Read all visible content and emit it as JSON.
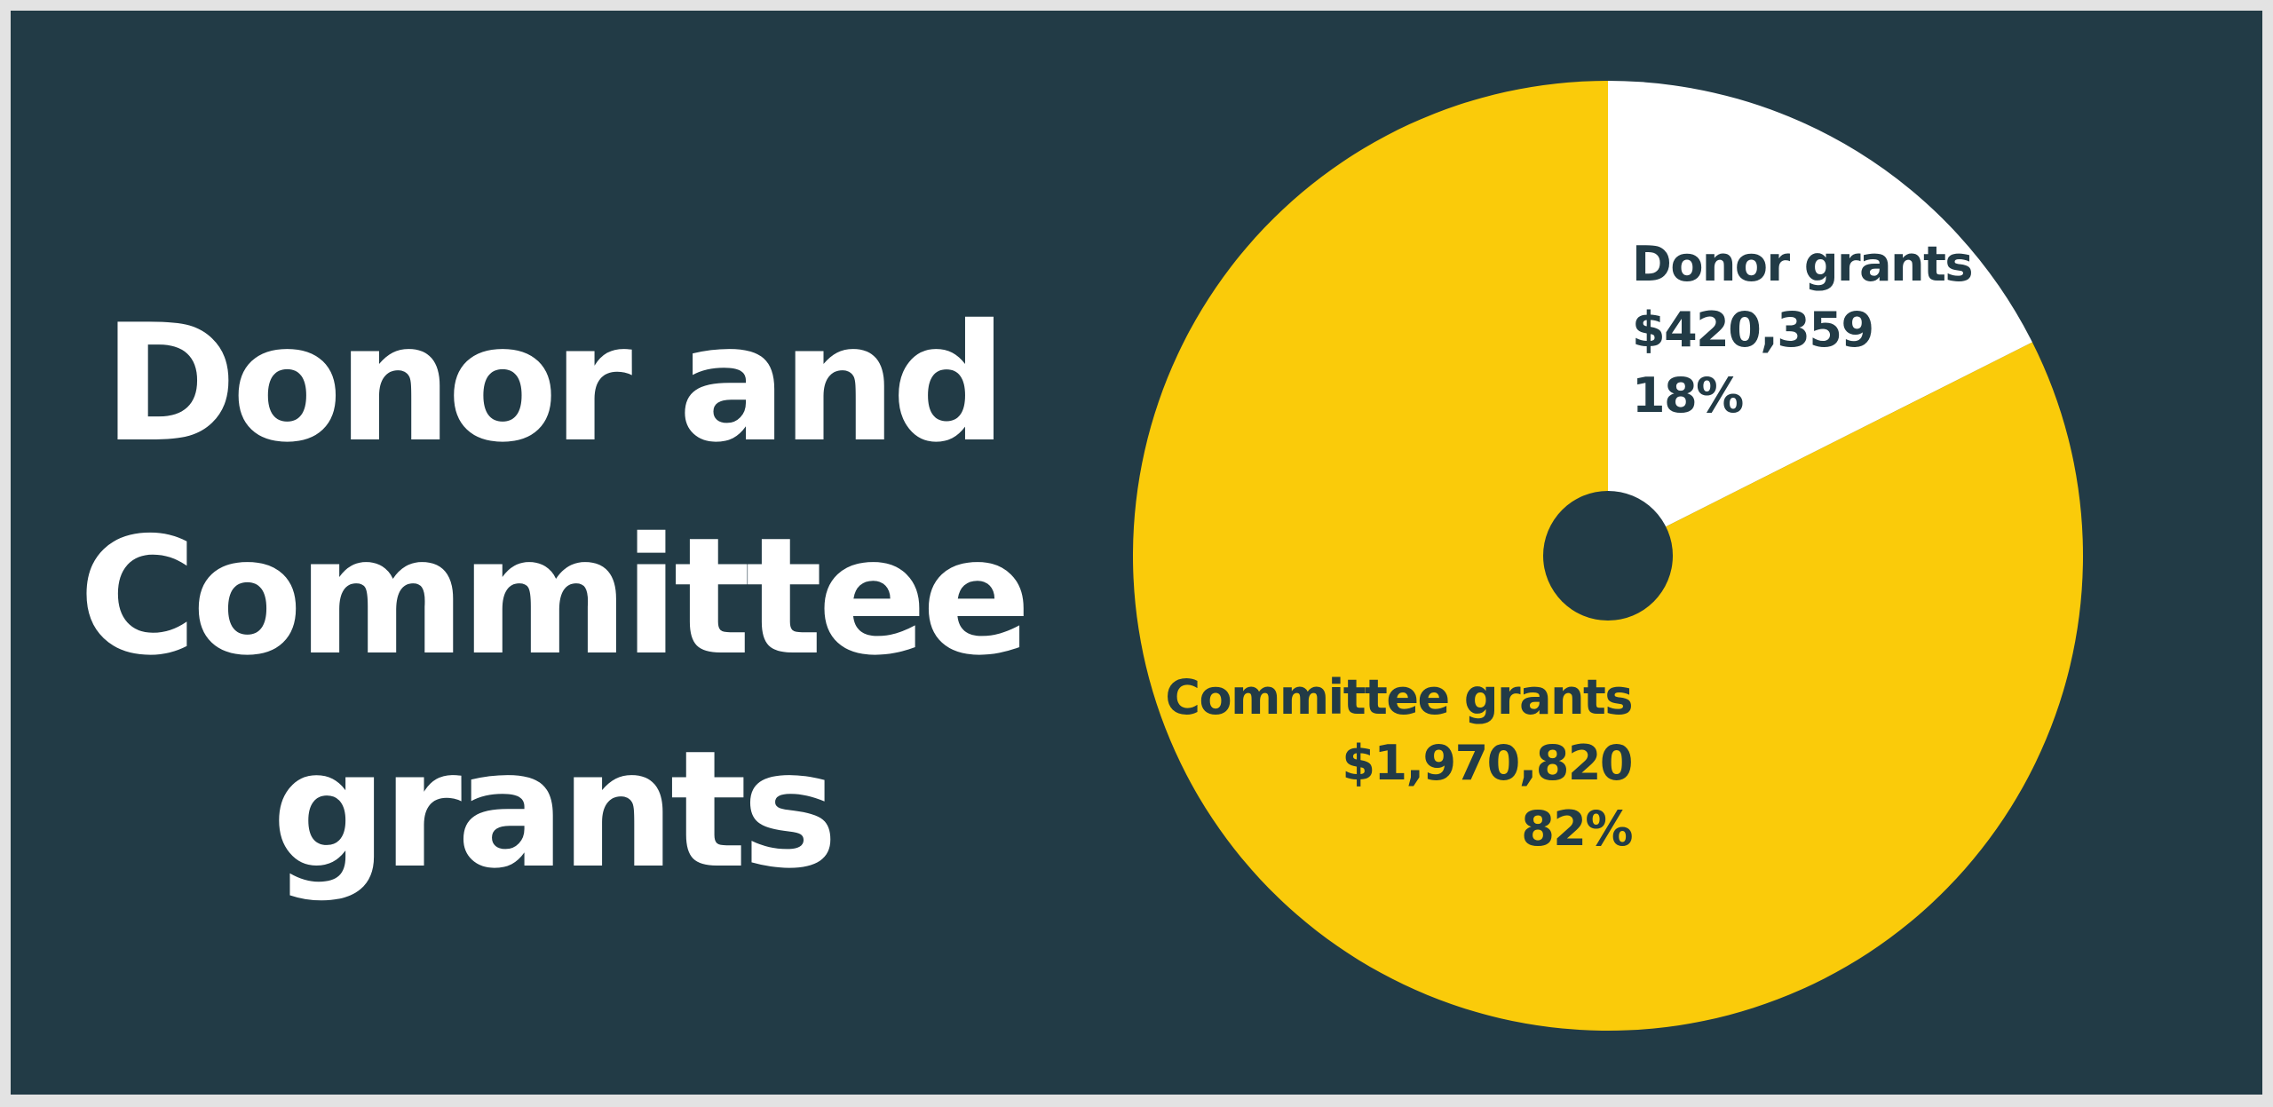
{
  "title_lines": [
    "Donor and",
    "Committee",
    "grants"
  ],
  "colors": {
    "background": "#223b46",
    "title": "#ffffff",
    "label_text": "#223b46"
  },
  "chart_data": {
    "type": "pie",
    "donut_hole": true,
    "legend": "none",
    "slices": [
      {
        "name": "Donor grants",
        "value": 420359,
        "value_label": "$420,359",
        "percent": 18,
        "percent_label": "18%",
        "color": "#ffffff"
      },
      {
        "name": "Committee grants",
        "value": 1970820,
        "value_label": "$1,970,820",
        "percent": 82,
        "percent_label": "82%",
        "color": "#facb0a"
      }
    ]
  }
}
